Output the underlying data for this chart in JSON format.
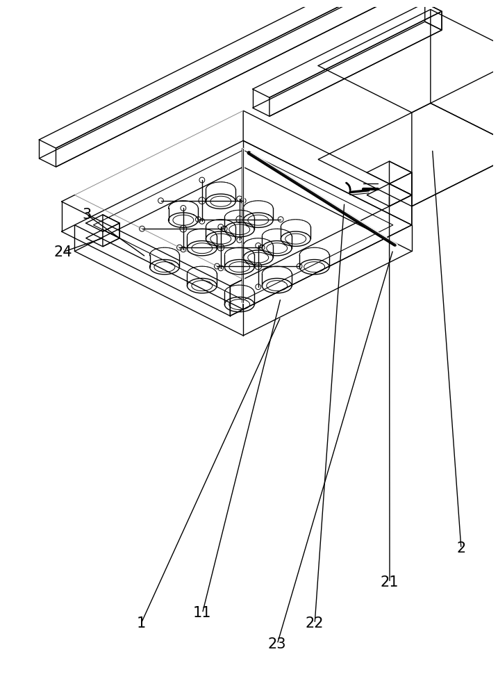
{
  "bg_color": "#ffffff",
  "lc": "#000000",
  "fig_width": 7.17,
  "fig_height": 10.0,
  "lw": 1.0,
  "lw_thick": 3.5
}
